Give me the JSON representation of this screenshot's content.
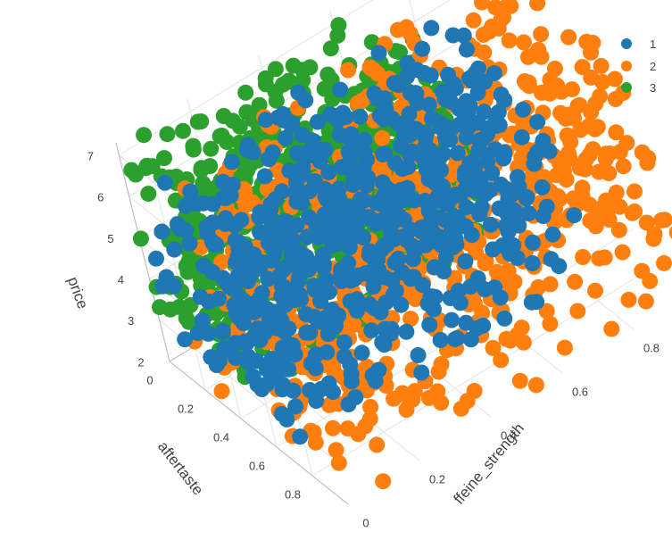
{
  "chart_data": {
    "type": "scatter3d",
    "title": "",
    "axes": {
      "x": {
        "title": "aftertaste",
        "ticks": [
          "0",
          "0.2",
          "0.4",
          "0.6",
          "0.8"
        ],
        "range": [
          0,
          1
        ]
      },
      "y": {
        "title": "ffeine_strength",
        "ticks": [
          "0",
          "0.2",
          "0.4",
          "0.6",
          "0.8"
        ],
        "range": [
          0,
          1
        ]
      },
      "z": {
        "title": "price",
        "ticks": [
          "2",
          "3",
          "4",
          "5",
          "6",
          "7"
        ],
        "range": [
          2,
          7.3
        ]
      }
    },
    "legend_position": "top-right",
    "series": [
      {
        "name": "1",
        "color": "#1f77b4",
        "region": {
          "x": [
            0.05,
            0.7
          ],
          "y": [
            0.0,
            0.85
          ],
          "z": [
            2.0,
            6.4
          ]
        }
      },
      {
        "name": "2",
        "color": "#ff7f0e",
        "region": {
          "x": [
            0.15,
            1.0
          ],
          "y": [
            0.0,
            1.0
          ],
          "z": [
            2.0,
            7.2
          ]
        }
      },
      {
        "name": "3",
        "color": "#2ca02c",
        "region": {
          "x": [
            0.0,
            0.55
          ],
          "y": [
            0.0,
            0.7
          ],
          "z": [
            3.0,
            7.2
          ]
        }
      }
    ],
    "grid": true
  }
}
